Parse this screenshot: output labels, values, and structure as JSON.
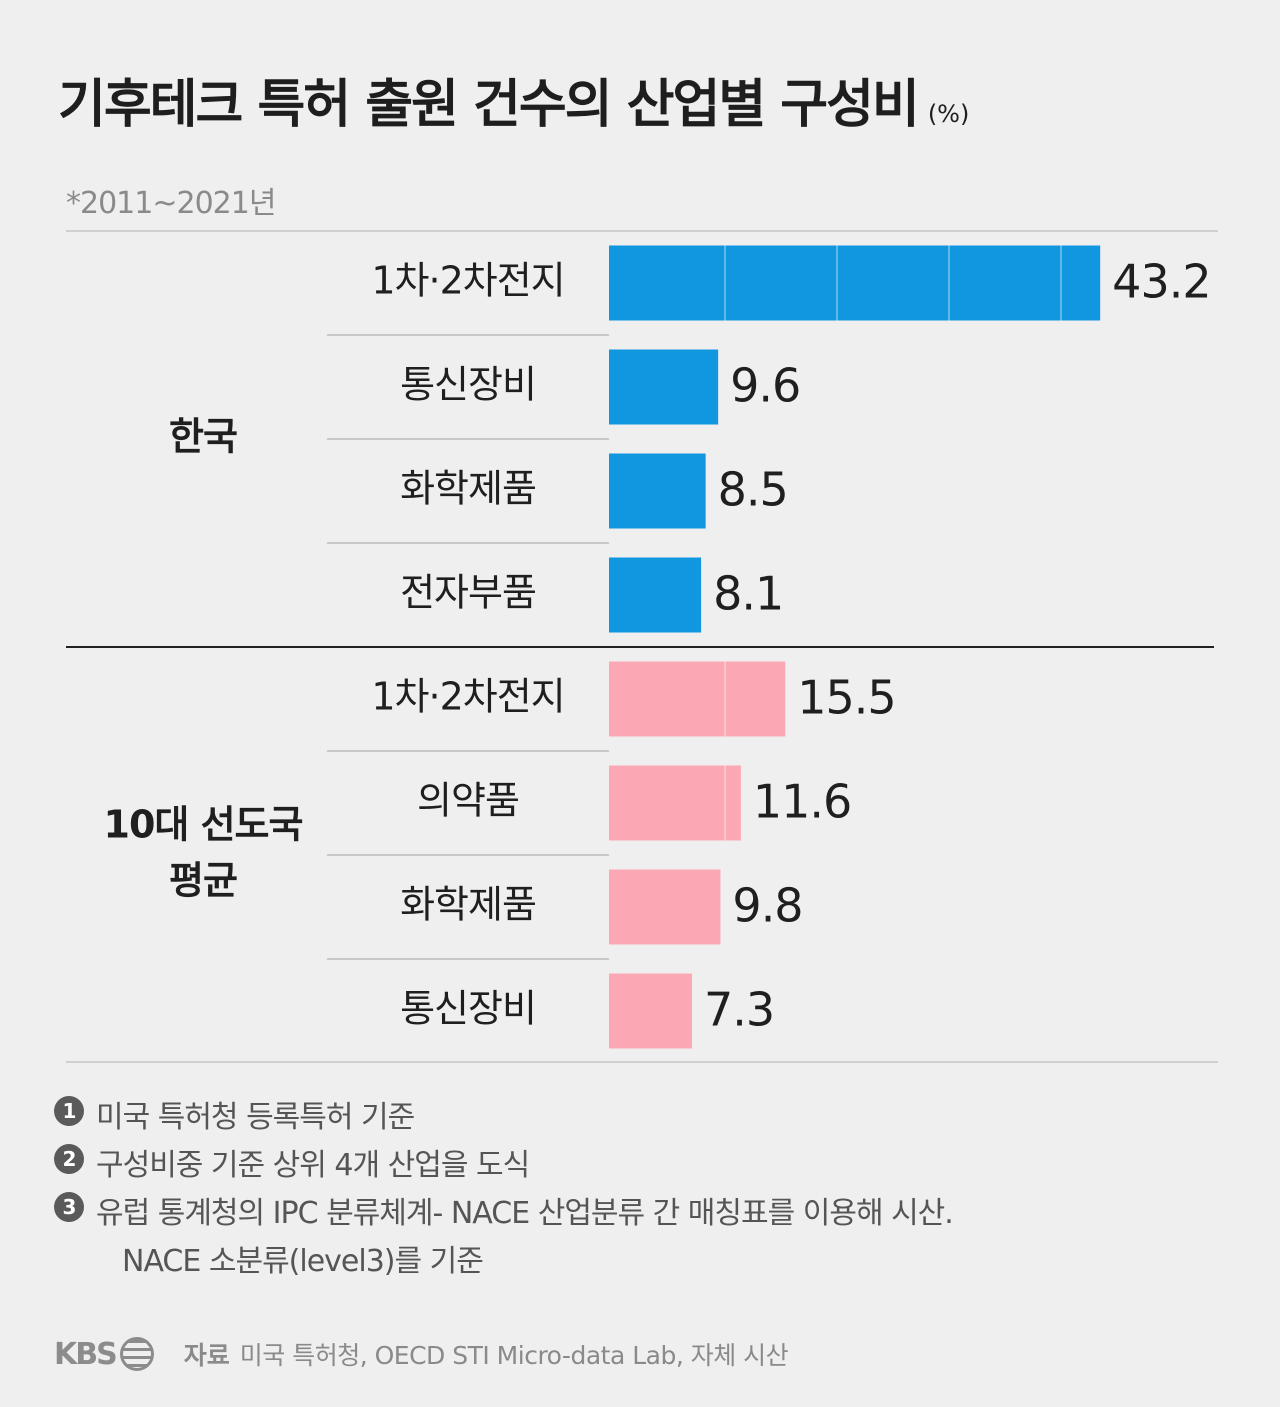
{
  "title": "기후테크 특허 출원 건수의 산업별 구성비",
  "unit": "(%)",
  "period": "*2011~2021년",
  "colors": {
    "korea": "#1196e0",
    "leaders": "#fba8b4"
  },
  "chart_data": {
    "type": "bar",
    "orientation": "horizontal",
    "unit": "%",
    "groups": [
      {
        "name": "한국",
        "categories": [
          "1차·2차전지",
          "통신장비",
          "화학제품",
          "전자부품"
        ],
        "values": [
          43.2,
          9.6,
          8.5,
          8.1
        ]
      },
      {
        "name": "10대 선도국 평균",
        "name_lines": [
          "10대 선도국",
          "평균"
        ],
        "categories": [
          "1차·2차전지",
          "의약품",
          "화학제품",
          "통신장비"
        ],
        "values": [
          15.5,
          11.6,
          9.8,
          7.3
        ]
      }
    ],
    "xlim": [
      0,
      50
    ],
    "grid": true
  },
  "footnotes": [
    {
      "num": "1",
      "lines": [
        "미국 특허청 등록특허 기준"
      ]
    },
    {
      "num": "2",
      "lines": [
        "구성비중 기준 상위 4개 산업을 도식"
      ]
    },
    {
      "num": "3",
      "lines": [
        "유럽 통계청의 IPC 분류체계- NACE 산업분류 간 매칭표를 이용해 시산.",
        "NACE 소분류(level3)를 기준"
      ]
    }
  ],
  "source": {
    "logo": "KBS",
    "label": "자료",
    "text": "미국 특허청, OECD STI Micro-data Lab, 자체 시산"
  }
}
